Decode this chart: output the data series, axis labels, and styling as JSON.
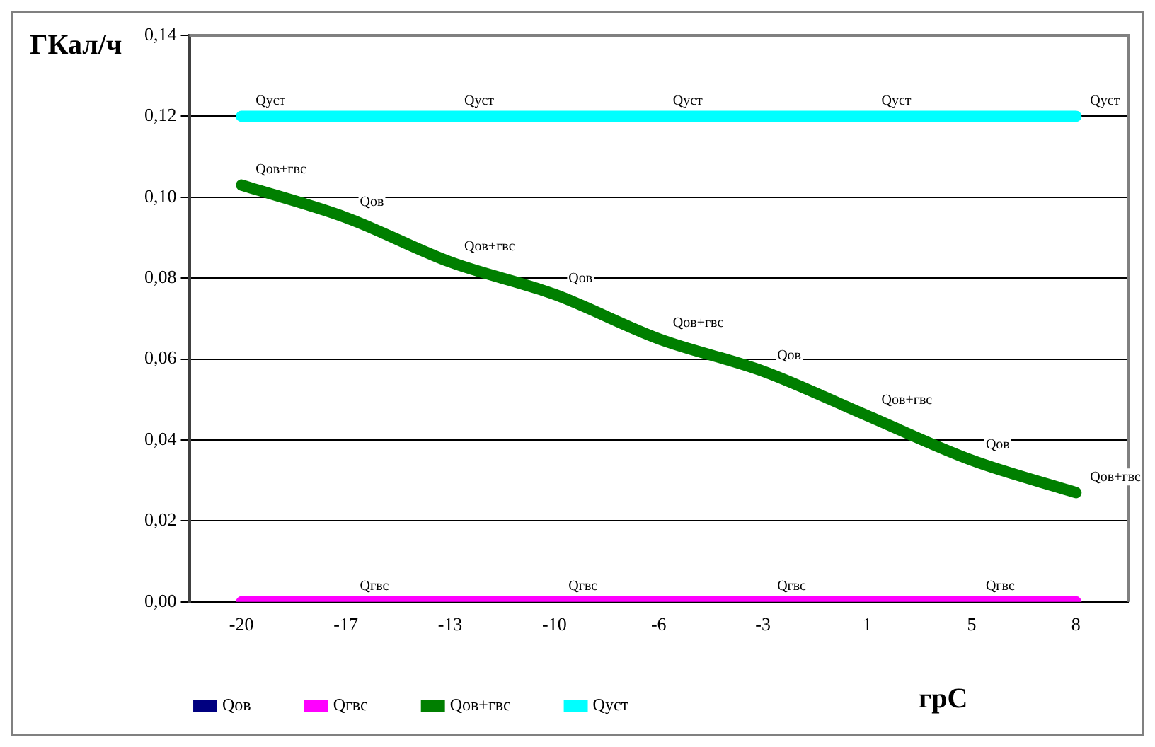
{
  "chart_data": {
    "type": "line",
    "xlabel": "грС",
    "ylabel": "ГКал/ч",
    "categories": [
      "-20",
      "-17",
      "-13",
      "-10",
      "-6",
      "-3",
      "1",
      "5",
      "8"
    ],
    "series": [
      {
        "name": "Qов",
        "color": "#000080",
        "values": [
          null,
          null,
          null,
          null,
          null,
          null,
          null,
          null,
          null
        ]
      },
      {
        "name": "Qгвс",
        "color": "#ff00ff",
        "values": [
          0,
          0,
          0,
          0,
          0,
          0,
          0,
          0,
          0
        ]
      },
      {
        "name": "Qов+гвс",
        "color": "#007f00",
        "values": [
          0.103,
          0.095,
          0.084,
          0.076,
          0.065,
          0.057,
          0.046,
          0.035,
          0.027
        ]
      },
      {
        "name": "Qуст",
        "color": "#00ffff",
        "values": [
          0.12,
          0.12,
          0.12,
          0.12,
          0.12,
          0.12,
          0.12,
          0.12,
          0.12
        ]
      }
    ],
    "ylim": [
      0,
      0.14
    ],
    "yticks": [
      {
        "value": 0,
        "label": "0,00"
      },
      {
        "value": 0.02,
        "label": "0,02"
      },
      {
        "value": 0.04,
        "label": "0,04"
      },
      {
        "value": 0.06,
        "label": "0,06"
      },
      {
        "value": 0.08,
        "label": "0,08"
      },
      {
        "value": 0.1,
        "label": "0,10"
      },
      {
        "value": 0.12,
        "label": "0,12"
      },
      {
        "value": 0.14,
        "label": "0,14"
      }
    ],
    "grid": "y",
    "legend": "bottom",
    "marker": "none",
    "line_style": "solid",
    "annotations": [
      {
        "text": "Qуст",
        "x": "-20",
        "y": 0.12
      },
      {
        "text": "Qуст",
        "x": "-13",
        "y": 0.12
      },
      {
        "text": "Qуст",
        "x": "-6",
        "y": 0.12
      },
      {
        "text": "Qуст",
        "x": "1",
        "y": 0.12
      },
      {
        "text": "Qуст",
        "x": "8",
        "y": 0.12
      },
      {
        "text": "Qов+гвс",
        "x": "-20",
        "y": 0.103
      },
      {
        "text": "Qов",
        "x": "-17",
        "y": 0.095
      },
      {
        "text": "Qов+гвс",
        "x": "-13",
        "y": 0.084
      },
      {
        "text": "Qов",
        "x": "-10",
        "y": 0.076
      },
      {
        "text": "Qов+гвс",
        "x": "-6",
        "y": 0.065
      },
      {
        "text": "Qов",
        "x": "-3",
        "y": 0.057
      },
      {
        "text": "Qов+гвс",
        "x": "1",
        "y": 0.046
      },
      {
        "text": "Qов",
        "x": "5",
        "y": 0.035
      },
      {
        "text": "Qов+гвс",
        "x": "8",
        "y": 0.027
      },
      {
        "text": "Qгвс",
        "x": "-17",
        "y": 0
      },
      {
        "text": "Qгвс",
        "x": "-10",
        "y": 0
      },
      {
        "text": "Qгвс",
        "x": "-3",
        "y": 0
      },
      {
        "text": "Qгвс",
        "x": "5",
        "y": 0
      }
    ]
  }
}
